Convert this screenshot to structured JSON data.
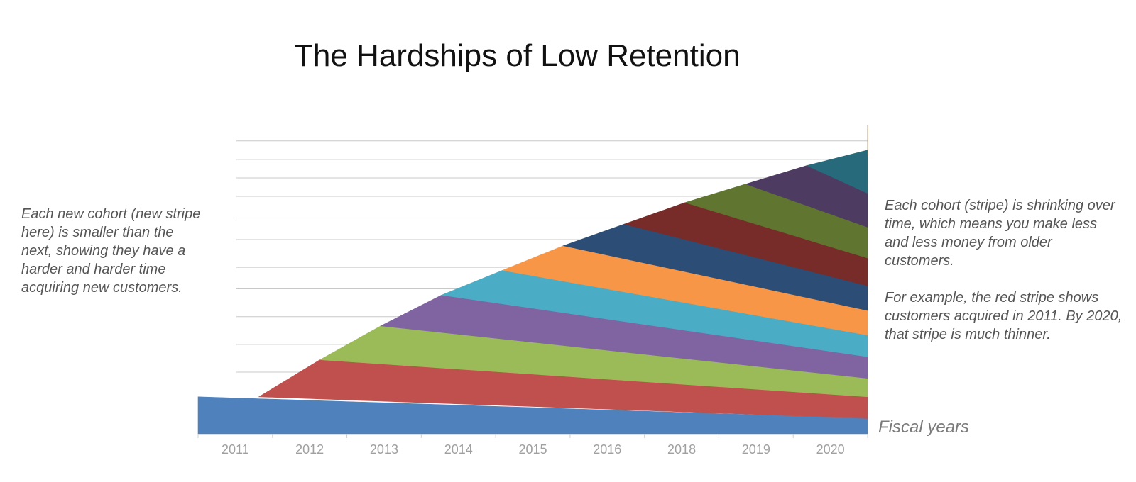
{
  "title": "The Hardships of Low Retention",
  "annotations": {
    "left": "Each new cohort (new stripe here) is smaller than the next, showing they have a harder and harder time acquiring  new customers.",
    "right_1": "Each cohort (stripe) is shrinking over time, which means you make less and less money from older customers.",
    "right_2": "For example, the red stripe shows customers acquired in 2011. By 2020, that stripe is much thinner."
  },
  "chart_data": {
    "type": "area",
    "title": "The Hardships of Low Retention",
    "xlabel": "Fiscal years",
    "ylabel": "",
    "categories": [
      "2011",
      "2012",
      "2013",
      "2014",
      "2015",
      "2016",
      "2018",
      "2019",
      "2020"
    ],
    "ylim": [
      0,
      100
    ],
    "grid": true,
    "colors": [
      "#4f81bd",
      "#c0504d",
      "#9bbb59",
      "#8064a2",
      "#4bacc6",
      "#f79646",
      "#2c4d75",
      "#772c2a",
      "#5f7530",
      "#4d3b62",
      "#276a7c",
      "#b65708"
    ],
    "boundaries_start": [
      0,
      12,
      24,
      35,
      45,
      53,
      61,
      68,
      75,
      81,
      87,
      92,
      97
    ],
    "boundaries_end": [
      0,
      5,
      12,
      18,
      25,
      32,
      40,
      48,
      57,
      67,
      78,
      90,
      100
    ]
  }
}
